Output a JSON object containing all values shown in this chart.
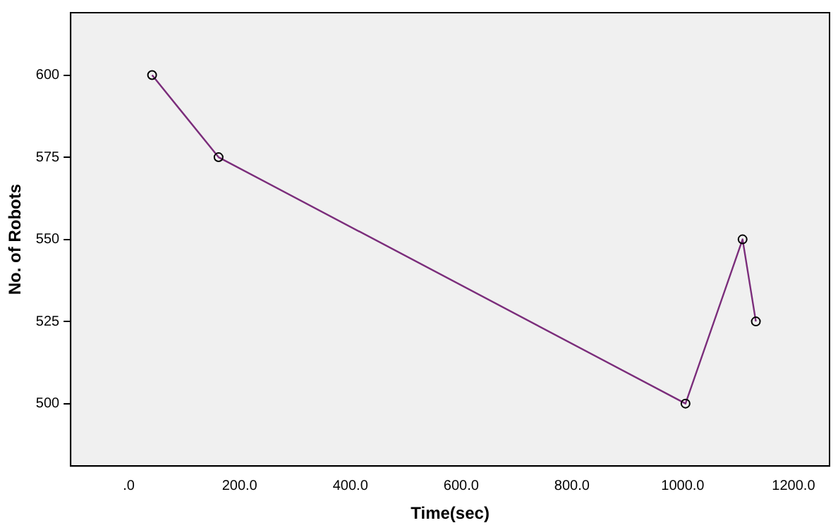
{
  "chart_data": {
    "type": "line",
    "xlabel": "Time(sec)",
    "ylabel": "No. of Robots",
    "x": [
      42,
      162,
      1005,
      1108,
      1132
    ],
    "series": [
      {
        "color": "#7b2d7b",
        "values": [
          600,
          575,
          500,
          550,
          525
        ]
      }
    ],
    "xlim": [
      -105,
      1265
    ],
    "xticks": [
      {
        "value": 0,
        "label": ".0"
      },
      {
        "value": 200,
        "label": "200.0"
      },
      {
        "value": 400,
        "label": "400.0"
      },
      {
        "value": 600,
        "label": "600.0"
      },
      {
        "value": 800,
        "label": "800.0"
      },
      {
        "value": 1000,
        "label": "1000.0"
      },
      {
        "value": 1200,
        "label": "1200.0"
      }
    ],
    "ylim": [
      481,
      619
    ],
    "yticks": [
      500,
      525,
      550,
      575,
      600
    ],
    "grid": false,
    "legend": false,
    "marker": "circle",
    "line_style": "solid"
  }
}
